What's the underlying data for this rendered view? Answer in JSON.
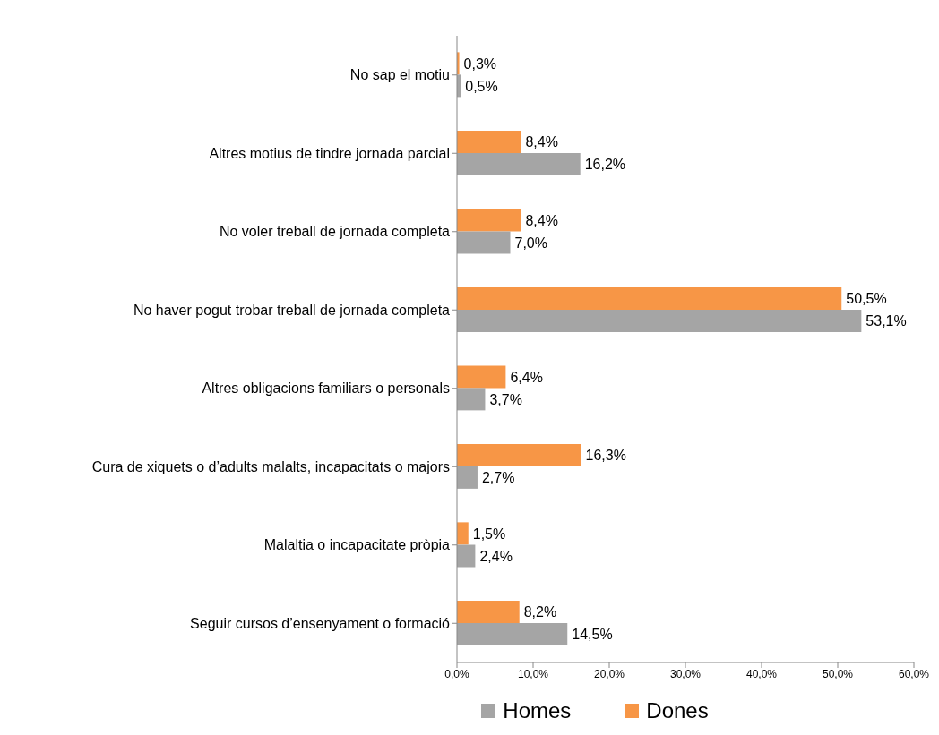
{
  "chart_data": {
    "type": "bar",
    "orientation": "horizontal",
    "categories": [
      "No sap el motiu",
      "Altres motius de tindre jornada parcial",
      "No voler treball de jornada completa",
      "No haver pogut trobar treball de jornada completa",
      "Altres obligacions familiars o personals",
      "Cura de xiquets o d’adults malalts, incapacitats o majors",
      "Malaltia o incapacitate pròpia",
      "Seguir cursos d’ensenyament o formació"
    ],
    "series": [
      {
        "name": "Homes",
        "color": "#a5a5a5",
        "values": [
          0.5,
          16.2,
          7.0,
          53.1,
          3.7,
          2.7,
          2.4,
          14.5
        ],
        "value_labels": [
          "0,5%",
          "16,2%",
          "7,0%",
          "53,1%",
          "3,7%",
          "2,7%",
          "2,4%",
          "14,5%"
        ]
      },
      {
        "name": "Dones",
        "color": "#f79646",
        "values": [
          0.3,
          8.4,
          8.4,
          50.5,
          6.4,
          16.3,
          1.5,
          8.2
        ],
        "value_labels": [
          "0,3%",
          "8,4%",
          "8,4%",
          "50,5%",
          "6,4%",
          "16,3%",
          "1,5%",
          "8,2%"
        ]
      }
    ],
    "xlim": [
      0,
      60
    ],
    "xticks": [
      {
        "value": 0,
        "label": "0,0%"
      },
      {
        "value": 10,
        "label": "10,0%"
      },
      {
        "value": 20,
        "label": "20,0%"
      },
      {
        "value": 30,
        "label": "30,0%"
      },
      {
        "value": 40,
        "label": "40,0%"
      },
      {
        "value": 50,
        "label": "50,0%"
      },
      {
        "value": 60,
        "label": "60,0%"
      }
    ],
    "grid": false,
    "legend": "bottom"
  }
}
